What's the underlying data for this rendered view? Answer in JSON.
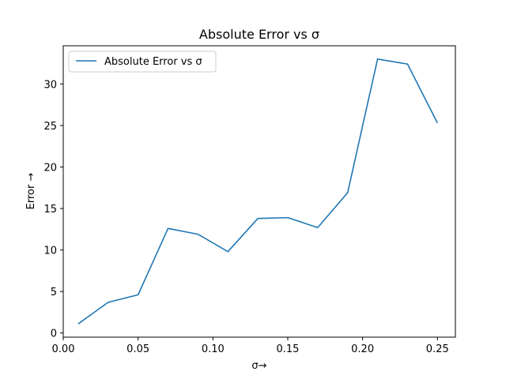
{
  "chart_data": {
    "type": "line",
    "title": "Absolute Error vs σ",
    "xlabel": "σ→",
    "ylabel": "Error →",
    "x": [
      0.01,
      0.03,
      0.05,
      0.07,
      0.09,
      0.11,
      0.13,
      0.15,
      0.17,
      0.19,
      0.21,
      0.23,
      0.25
    ],
    "series": [
      {
        "name": "Absolute Error vs σ",
        "color": "#1f77b4",
        "values": [
          1.1,
          3.7,
          4.6,
          12.6,
          11.9,
          9.8,
          13.8,
          13.9,
          12.7,
          16.9,
          33.0,
          32.4,
          25.3
        ]
      }
    ],
    "xlim": [
      0.0,
      0.262
    ],
    "ylim": [
      -0.5,
      34.6
    ],
    "xticks": [
      0.0,
      0.05,
      0.1,
      0.15,
      0.2,
      0.25
    ],
    "xtick_labels": [
      "0.00",
      "0.05",
      "0.10",
      "0.15",
      "0.20",
      "0.25"
    ],
    "yticks": [
      0,
      5,
      10,
      15,
      20,
      25,
      30
    ],
    "ytick_labels": [
      "0",
      "5",
      "10",
      "15",
      "20",
      "25",
      "30"
    ],
    "grid": false,
    "legend_position": "top-left"
  }
}
